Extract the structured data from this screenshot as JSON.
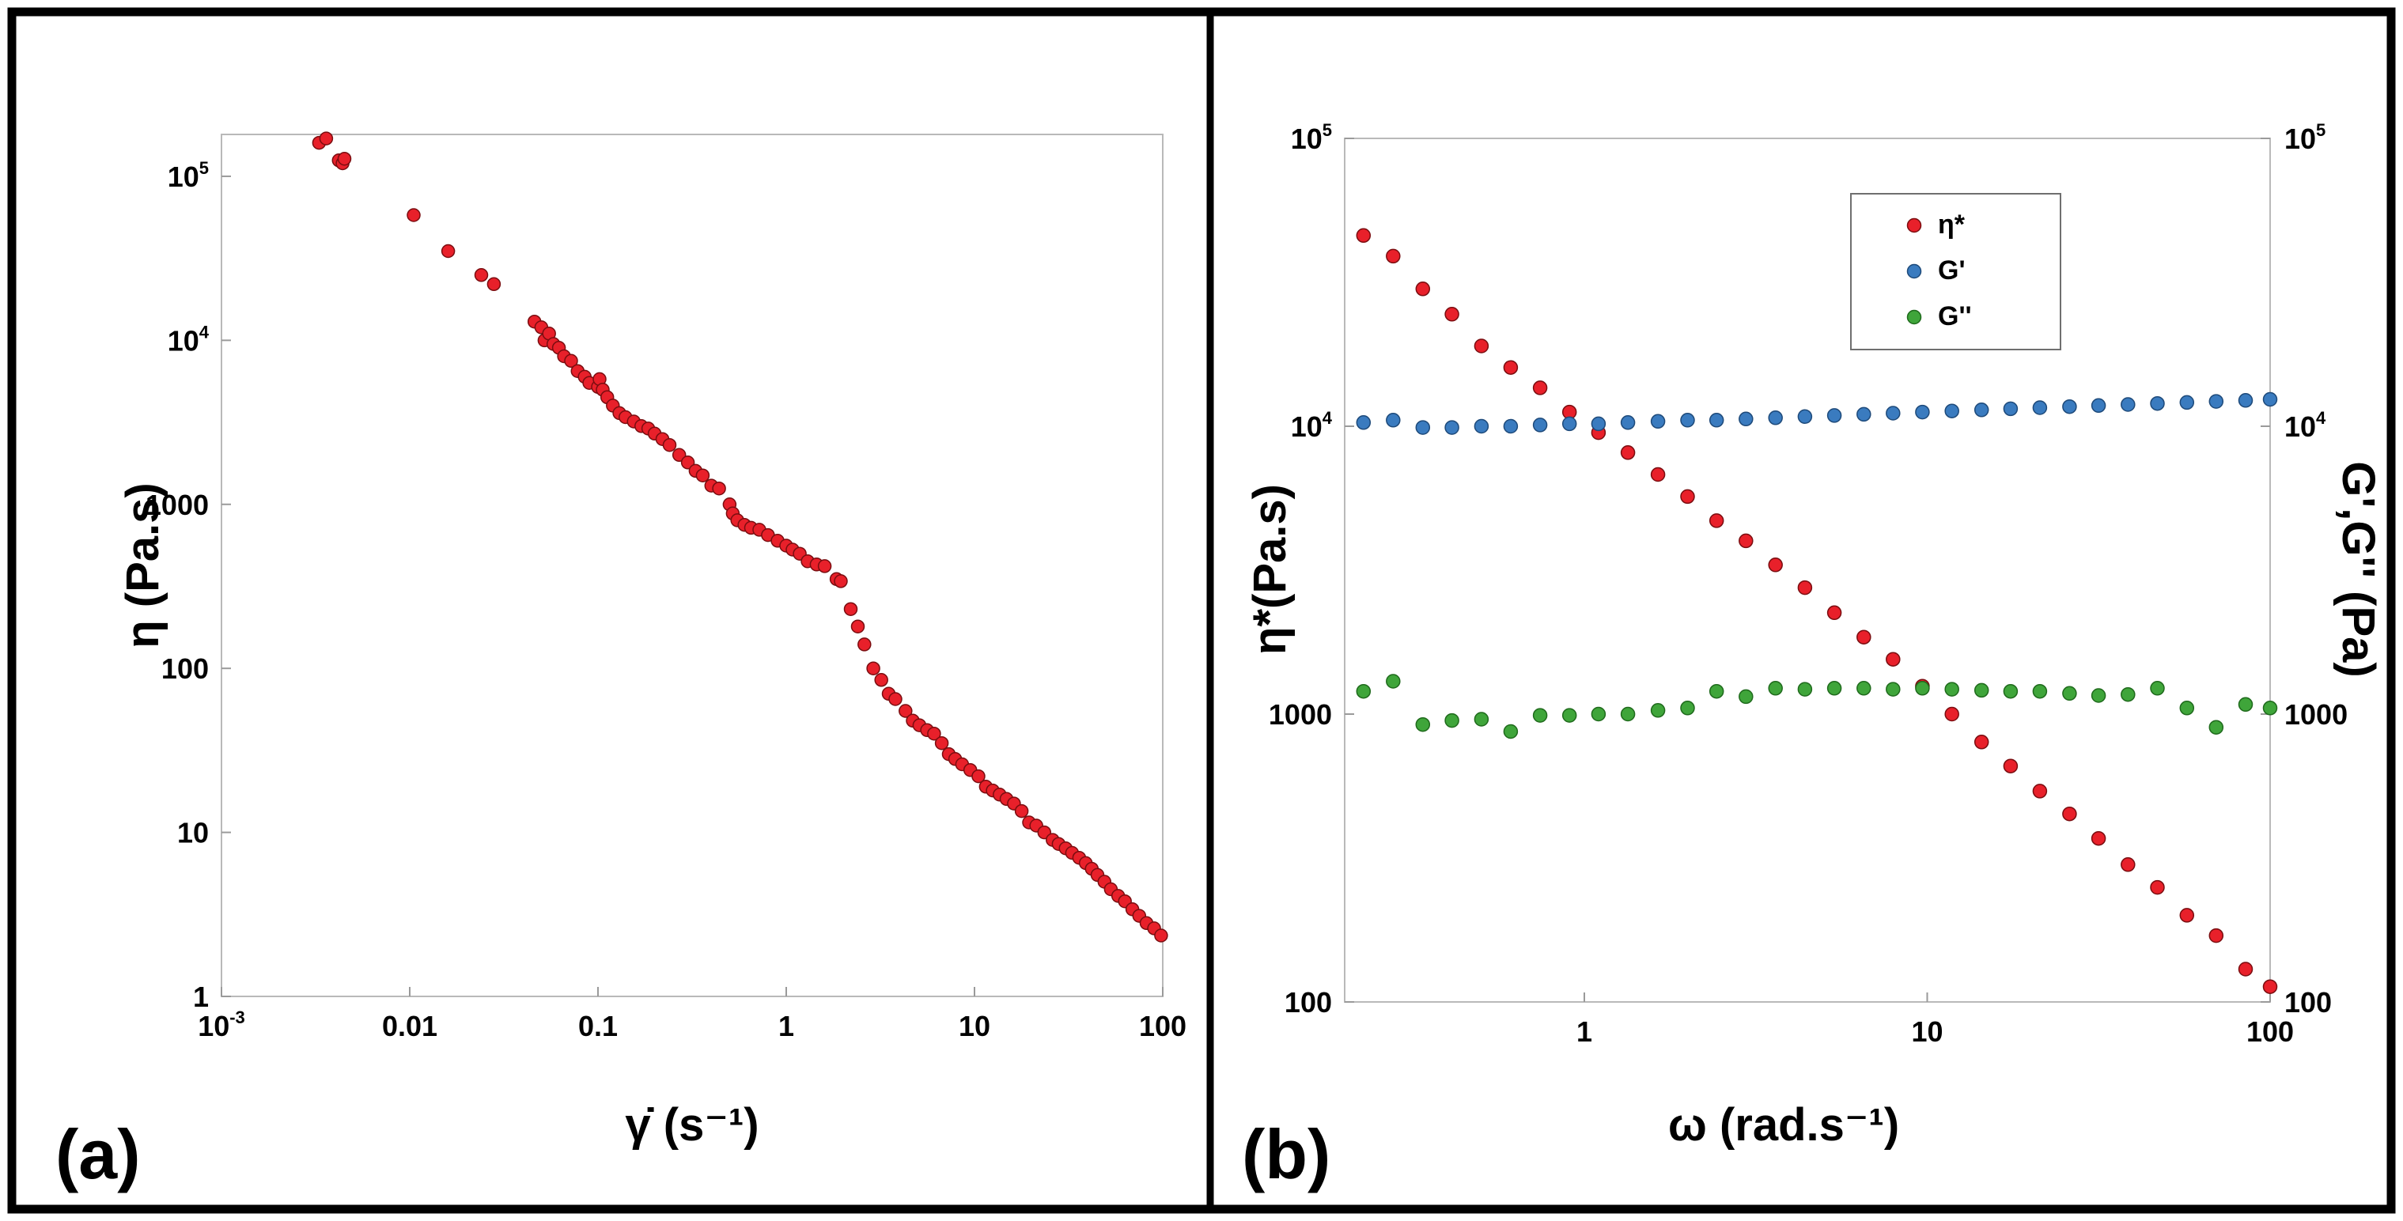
{
  "chart_data": [
    {
      "panel_label": "(a)",
      "type": "scatter",
      "xscale": "log",
      "yscale": "log",
      "xlabel": "γ̇ (s⁻¹)",
      "ylabel": "η (Pa.s)",
      "xlim": [
        0.001,
        100
      ],
      "ylim": [
        1,
        180000
      ],
      "xticks": [
        {
          "v": 0.001,
          "base": "10",
          "exp": "-3"
        },
        {
          "v": 0.01,
          "label": "0.01"
        },
        {
          "v": 0.1,
          "label": "0.1"
        },
        {
          "v": 1,
          "label": "1"
        },
        {
          "v": 10,
          "label": "10"
        },
        {
          "v": 100,
          "label": "100"
        }
      ],
      "yticks": [
        {
          "v": 1,
          "label": "1"
        },
        {
          "v": 10,
          "label": "10"
        },
        {
          "v": 100,
          "label": "100"
        },
        {
          "v": 1000,
          "label": "1000"
        },
        {
          "v": 10000,
          "base": "10",
          "exp": "4"
        },
        {
          "v": 100000,
          "base": "10",
          "exp": "5"
        }
      ],
      "series": [
        {
          "name": "η",
          "color": "#e8202a",
          "points": [
            [
              0.0033,
              160000
            ],
            [
              0.0036,
              170000
            ],
            [
              0.0042,
              125000
            ],
            [
              0.0044,
              120000
            ],
            [
              0.0045,
              128000
            ],
            [
              0.0105,
              58000
            ],
            [
              0.016,
              35000
            ],
            [
              0.024,
              25000
            ],
            [
              0.028,
              22000
            ],
            [
              0.046,
              13000
            ],
            [
              0.05,
              12000
            ],
            [
              0.052,
              10000
            ],
            [
              0.055,
              11000
            ],
            [
              0.058,
              9500
            ],
            [
              0.062,
              9000
            ],
            [
              0.066,
              8000
            ],
            [
              0.072,
              7500
            ],
            [
              0.078,
              6500
            ],
            [
              0.085,
              6000
            ],
            [
              0.09,
              5500
            ],
            [
              0.1,
              5200
            ],
            [
              0.102,
              5800
            ],
            [
              0.106,
              5000
            ],
            [
              0.112,
              4500
            ],
            [
              0.12,
              4000
            ],
            [
              0.13,
              3600
            ],
            [
              0.14,
              3400
            ],
            [
              0.155,
              3200
            ],
            [
              0.17,
              3000
            ],
            [
              0.185,
              2900
            ],
            [
              0.2,
              2700
            ],
            [
              0.22,
              2500
            ],
            [
              0.24,
              2300
            ],
            [
              0.27,
              2000
            ],
            [
              0.3,
              1800
            ],
            [
              0.33,
              1600
            ],
            [
              0.36,
              1500
            ],
            [
              0.4,
              1300
            ],
            [
              0.44,
              1250
            ],
            [
              0.5,
              1000
            ],
            [
              0.52,
              880
            ],
            [
              0.55,
              800
            ],
            [
              0.6,
              750
            ],
            [
              0.65,
              720
            ],
            [
              0.72,
              700
            ],
            [
              0.8,
              650
            ],
            [
              0.9,
              600
            ],
            [
              1.0,
              560
            ],
            [
              1.08,
              530
            ],
            [
              1.18,
              500
            ],
            [
              1.3,
              450
            ],
            [
              1.45,
              430
            ],
            [
              1.6,
              420
            ],
            [
              1.85,
              350
            ],
            [
              1.95,
              340
            ],
            [
              2.2,
              230
            ],
            [
              2.4,
              180
            ],
            [
              2.6,
              140
            ],
            [
              2.9,
              100
            ],
            [
              3.2,
              85
            ],
            [
              3.5,
              70
            ],
            [
              3.8,
              65
            ],
            [
              4.3,
              55
            ],
            [
              4.7,
              48
            ],
            [
              5.1,
              45
            ],
            [
              5.6,
              42
            ],
            [
              6.1,
              40
            ],
            [
              6.7,
              35
            ],
            [
              7.3,
              30
            ],
            [
              7.9,
              28
            ],
            [
              8.6,
              26
            ],
            [
              9.5,
              24
            ],
            [
              10.5,
              22
            ],
            [
              11.5,
              19
            ],
            [
              12.5,
              18
            ],
            [
              13.6,
              17
            ],
            [
              14.8,
              16
            ],
            [
              16.2,
              15
            ],
            [
              17.8,
              13.5
            ],
            [
              19.5,
              11.5
            ],
            [
              21.3,
              11
            ],
            [
              23.5,
              10
            ],
            [
              26,
              9
            ],
            [
              28,
              8.5
            ],
            [
              30.5,
              8
            ],
            [
              33,
              7.5
            ],
            [
              36,
              7
            ],
            [
              39,
              6.5
            ],
            [
              42,
              6
            ],
            [
              45,
              5.5
            ],
            [
              49,
              5
            ],
            [
              53,
              4.5
            ],
            [
              58,
              4.1
            ],
            [
              63,
              3.8
            ],
            [
              69,
              3.4
            ],
            [
              75,
              3.1
            ],
            [
              82,
              2.8
            ],
            [
              90,
              2.6
            ],
            [
              98,
              2.35
            ]
          ]
        }
      ]
    },
    {
      "panel_label": "(b)",
      "type": "scatter",
      "xscale": "log",
      "yscale": "log",
      "xlabel": "ω (rad.s⁻¹)",
      "ylabel": "η*(Pa.s)",
      "y2label": "G',G'' (Pa)",
      "xlim": [
        0.2,
        100
      ],
      "ylim": [
        100,
        100000
      ],
      "y2lim": [
        100,
        100000
      ],
      "xticks": [
        {
          "v": 1,
          "label": "1"
        },
        {
          "v": 10,
          "label": "10"
        },
        {
          "v": 100,
          "label": "100"
        }
      ],
      "yticks": [
        {
          "v": 100,
          "label": "100"
        },
        {
          "v": 1000,
          "label": "1000"
        },
        {
          "v": 10000,
          "base": "10",
          "exp": "4"
        },
        {
          "v": 100000,
          "base": "10",
          "exp": "5"
        }
      ],
      "y2ticks": [
        {
          "v": 100,
          "label": "100"
        },
        {
          "v": 1000,
          "label": "1000"
        },
        {
          "v": 10000,
          "base": "10",
          "exp": "4"
        },
        {
          "v": 100000,
          "base": "10",
          "exp": "5"
        }
      ],
      "legend_position": "top-center",
      "series": [
        {
          "name": "η*",
          "color": "#e8202a",
          "points": [
            [
              0.227,
              46000
            ],
            [
              0.277,
              39000
            ],
            [
              0.338,
              30000
            ],
            [
              0.411,
              24500
            ],
            [
              0.501,
              19000
            ],
            [
              0.61,
              16000
            ],
            [
              0.743,
              13600
            ],
            [
              0.905,
              11200
            ],
            [
              1.1,
              9500
            ],
            [
              1.34,
              8100
            ],
            [
              1.64,
              6800
            ],
            [
              2.0,
              5700
            ],
            [
              2.43,
              4700
            ],
            [
              2.96,
              4000
            ],
            [
              3.61,
              3300
            ],
            [
              4.4,
              2750
            ],
            [
              5.36,
              2250
            ],
            [
              6.53,
              1850
            ],
            [
              7.95,
              1550
            ],
            [
              9.68,
              1250
            ],
            [
              11.8,
              1000
            ],
            [
              14.4,
              800
            ],
            [
              17.5,
              660
            ],
            [
              21.3,
              540
            ],
            [
              26.0,
              450
            ],
            [
              31.6,
              370
            ],
            [
              38.5,
              300
            ],
            [
              46.9,
              250
            ],
            [
              57.2,
              200
            ],
            [
              69.6,
              170
            ],
            [
              84.8,
              130
            ],
            [
              100,
              113
            ]
          ]
        },
        {
          "name": "G'",
          "color": "#3a7bbf",
          "points": [
            [
              0.227,
              10300
            ],
            [
              0.277,
              10500
            ],
            [
              0.338,
              9900
            ],
            [
              0.411,
              9900
            ],
            [
              0.501,
              10000
            ],
            [
              0.61,
              10000
            ],
            [
              0.743,
              10100
            ],
            [
              0.905,
              10200
            ],
            [
              1.1,
              10200
            ],
            [
              1.34,
              10300
            ],
            [
              1.64,
              10400
            ],
            [
              2.0,
              10500
            ],
            [
              2.43,
              10500
            ],
            [
              2.96,
              10600
            ],
            [
              3.61,
              10700
            ],
            [
              4.4,
              10800
            ],
            [
              5.36,
              10900
            ],
            [
              6.53,
              11000
            ],
            [
              7.95,
              11100
            ],
            [
              9.68,
              11200
            ],
            [
              11.8,
              11300
            ],
            [
              14.4,
              11400
            ],
            [
              17.5,
              11500
            ],
            [
              21.3,
              11600
            ],
            [
              26.0,
              11700
            ],
            [
              31.6,
              11800
            ],
            [
              38.5,
              11900
            ],
            [
              46.9,
              12000
            ],
            [
              57.2,
              12100
            ],
            [
              69.6,
              12200
            ],
            [
              84.8,
              12300
            ],
            [
              100,
              12400
            ]
          ]
        },
        {
          "name": "G''",
          "color": "#3fa53a",
          "points": [
            [
              0.227,
              1200
            ],
            [
              0.277,
              1300
            ],
            [
              0.338,
              920
            ],
            [
              0.411,
              950
            ],
            [
              0.501,
              960
            ],
            [
              0.61,
              870
            ],
            [
              0.743,
              990
            ],
            [
              0.905,
              990
            ],
            [
              1.1,
              1000
            ],
            [
              1.34,
              1000
            ],
            [
              1.64,
              1030
            ],
            [
              2.0,
              1050
            ],
            [
              2.43,
              1200
            ],
            [
              2.96,
              1150
            ],
            [
              3.61,
              1230
            ],
            [
              4.4,
              1220
            ],
            [
              5.36,
              1230
            ],
            [
              6.53,
              1230
            ],
            [
              7.95,
              1220
            ],
            [
              9.68,
              1230
            ],
            [
              11.8,
              1220
            ],
            [
              14.4,
              1210
            ],
            [
              17.5,
              1200
            ],
            [
              21.3,
              1200
            ],
            [
              26.0,
              1180
            ],
            [
              31.6,
              1160
            ],
            [
              38.5,
              1170
            ],
            [
              46.9,
              1230
            ],
            [
              57.2,
              1050
            ],
            [
              69.6,
              900
            ],
            [
              84.8,
              1080
            ],
            [
              100,
              1050
            ]
          ]
        }
      ]
    }
  ]
}
